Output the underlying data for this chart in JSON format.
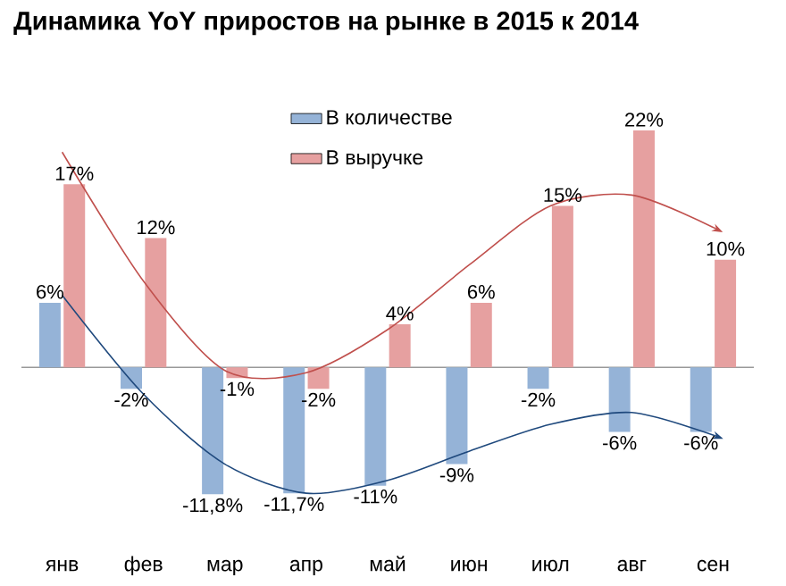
{
  "chart_data": {
    "type": "bar",
    "title": "Динамика YoY приростов на рынке в 2015 к 2014",
    "categories": [
      "янв",
      "фев",
      "мар",
      "апр",
      "май",
      "июн",
      "июл",
      "авг",
      "сен"
    ],
    "legend": "top",
    "series": [
      {
        "name": "В количестве",
        "color": "#95b3d7",
        "values": [
          6,
          -2,
          -11.8,
          -11.7,
          -11,
          -9,
          -2,
          -6,
          -6
        ],
        "value_labels": [
          "6%",
          "-2%",
          "-11,8%",
          "-11,7%",
          "-11%",
          "-9%",
          "-2%",
          "-6%",
          "-6%"
        ]
      },
      {
        "name": "В выручке",
        "color": "#e6a0a0",
        "values": [
          17,
          12,
          -1,
          -2,
          4,
          6,
          15,
          22,
          10
        ],
        "value_labels": [
          "17%",
          "12%",
          "-1%",
          "-2%",
          "4%",
          "6%",
          "15%",
          "22%",
          "10%"
        ]
      },
      {
        "type": "line",
        "color": "#c0504d",
        "values": [
          20,
          8,
          -0.3,
          -0.5,
          3.5,
          9.5,
          15,
          16,
          13
        ]
      },
      {
        "type": "line",
        "color": "#1f497d",
        "values": [
          6.7,
          -2.5,
          -9,
          -11.7,
          -10.5,
          -7.8,
          -5.3,
          -4.2,
          -6.3
        ]
      }
    ]
  }
}
